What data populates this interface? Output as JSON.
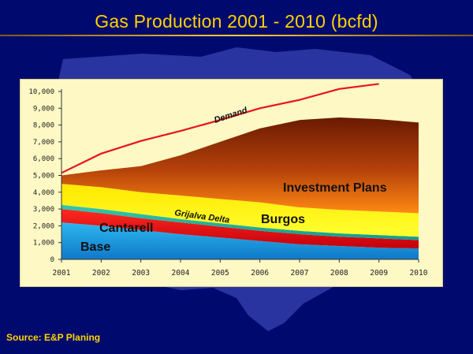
{
  "slide": {
    "title": "Gas Production 2001 - 2010 (bcfd)",
    "source": "Source: E&P Planing"
  },
  "chart_data": {
    "type": "area",
    "title": "Gas Production 2001 - 2010 (bcfd)",
    "x": [
      2001,
      2002,
      2003,
      2004,
      2005,
      2006,
      2007,
      2008,
      2009,
      2010
    ],
    "x_tick_labels": [
      "2001",
      "2002",
      "2003",
      "2004",
      "2005",
      "2006",
      "2007",
      "2008",
      "2009",
      "2010"
    ],
    "ylim": [
      0,
      10000
    ],
    "y_tick_labels": [
      "0",
      "1,000",
      "2,000",
      "3,000",
      "4,000",
      "5,000",
      "6,000",
      "7,000",
      "8,000",
      "9,000",
      "10,000"
    ],
    "stacked": true,
    "series": [
      {
        "name": "Base",
        "color": "#1e9fe0",
        "values": [
          2200,
          2000,
          1750,
          1500,
          1300,
          1100,
          900,
          800,
          700,
          650
        ]
      },
      {
        "name": "Cantarell",
        "color": "#e8141c",
        "values": [
          800,
          750,
          700,
          700,
          650,
          600,
          600,
          550,
          550,
          500
        ]
      },
      {
        "name": "Grijalva Delta",
        "color": "#1ab7a8",
        "values": [
          250,
          250,
          250,
          200,
          200,
          200,
          200,
          200,
          200,
          200
        ]
      },
      {
        "name": "Burgos",
        "color": "#ffff00",
        "values": [
          1250,
          1300,
          1300,
          1400,
          1450,
          1500,
          1400,
          1400,
          1400,
          1400
        ]
      },
      {
        "name": "Investment Plans",
        "color": "#d8520c",
        "values": [
          500,
          1000,
          1550,
          2400,
          3400,
          4400,
          5200,
          5500,
          5500,
          5400
        ]
      }
    ],
    "line_series": [
      {
        "name": "Demand",
        "color": "#e8141c",
        "values": [
          5150,
          6300,
          7050,
          7650,
          8300,
          9000,
          9500,
          10150,
          10450,
          null
        ]
      }
    ],
    "grid": false,
    "legend": "none"
  }
}
